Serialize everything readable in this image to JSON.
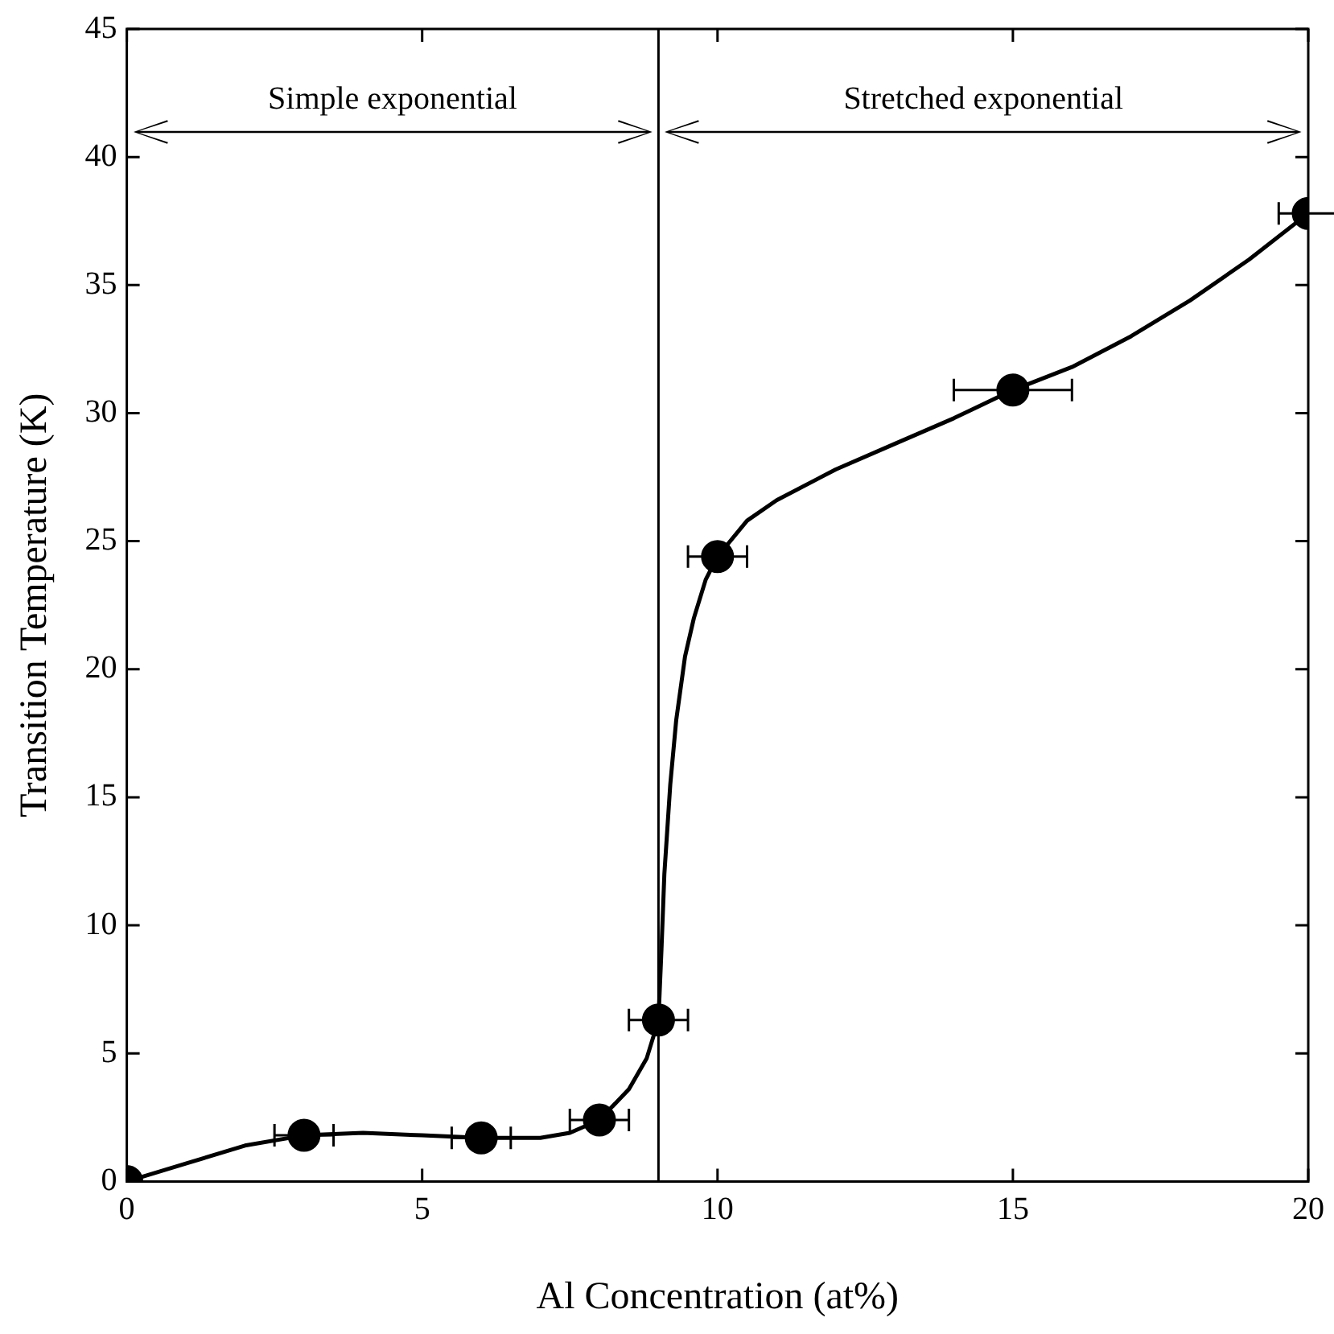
{
  "chart_data": {
    "type": "scatter",
    "xlabel": "Al Concentration (at%)",
    "ylabel": "Transition Temperature (K)",
    "xlim": [
      0,
      20
    ],
    "xticks": [
      0,
      5,
      10,
      15,
      20
    ],
    "ylim": [
      0,
      45
    ],
    "yticks": [
      0,
      5,
      10,
      15,
      20,
      25,
      30,
      35,
      40,
      45
    ],
    "grid": false,
    "legend": false,
    "ref_lines": [
      {
        "axis": "x",
        "value": 9,
        "color": "#000000"
      }
    ],
    "annotations": [
      "Simple exponential",
      "Stretched exponential"
    ],
    "series": [
      {
        "color": "#000000",
        "marker": "circle",
        "x": [
          0,
          3,
          6,
          8,
          9,
          10,
          15,
          20
        ],
        "values": [
          0,
          1.8,
          1.7,
          2.4,
          6.3,
          24.4,
          30.9,
          37.8
        ],
        "xerrors": [
          null,
          0.5,
          0.5,
          0.5,
          0.5,
          0.5,
          1,
          0.5
        ]
      },
      {
        "type": "line",
        "color": "#000000",
        "marker": "none",
        "line_style": "solid",
        "x": [
          0,
          1,
          2,
          3,
          4,
          5,
          6,
          7,
          7.5,
          8,
          8.5,
          8.8,
          9,
          9.05,
          9.1,
          9.2,
          9.3,
          9.45,
          9.6,
          9.8,
          10,
          10.5,
          11,
          12,
          13,
          14,
          15,
          16,
          17,
          18,
          19,
          20
        ],
        "values": [
          0,
          0.7,
          1.4,
          1.8,
          1.9,
          1.8,
          1.7,
          1.7,
          1.9,
          2.4,
          3.6,
          4.8,
          6.3,
          9,
          12,
          15.5,
          18,
          20.5,
          22,
          23.5,
          24.4,
          25.8,
          26.6,
          27.8,
          28.8,
          29.8,
          30.9,
          31.8,
          33,
          34.4,
          36,
          37.8
        ]
      }
    ]
  }
}
